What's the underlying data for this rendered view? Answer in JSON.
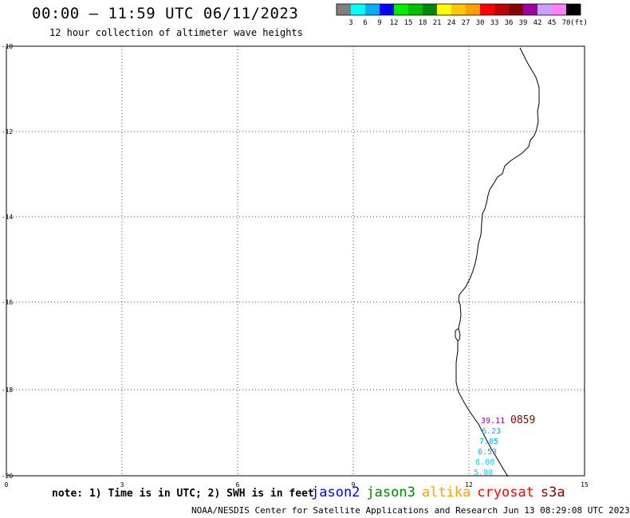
{
  "header": {
    "title": "00:00 – 11:59 UTC 06/11/2023",
    "subtitle": "12 hour collection of altimeter wave heights"
  },
  "colorbar": {
    "colors": [
      "#808080",
      "#00ffff",
      "#00b0f0",
      "#0000ff",
      "#00ee00",
      "#00c000",
      "#008800",
      "#ffff00",
      "#ffc800",
      "#ffa000",
      "#ff0000",
      "#c00000",
      "#880000",
      "#a000a0",
      "#c8a0ff",
      "#ff80ff",
      "#000000"
    ],
    "labels": [
      "3",
      "6",
      "9",
      "12",
      "15",
      "18",
      "21",
      "24",
      "27",
      "30",
      "33",
      "36",
      "39",
      "42",
      "45",
      "70",
      "(ft)"
    ]
  },
  "axes": {
    "lat_labels": [
      "-10",
      "-12",
      "-14",
      "-16",
      "-18",
      "-20"
    ],
    "lon_labels": [
      "0",
      "3",
      "6",
      "9",
      "12",
      "15"
    ]
  },
  "observations": {
    "values": [
      {
        "text": "39.11",
        "color": "#a000a0"
      },
      {
        "text": "6.23",
        "color": "#00b0f0"
      },
      {
        "text": "7.05",
        "color": "#00b0f0"
      },
      {
        "text": "6.53",
        "color": "#00b0f0"
      },
      {
        "text": "6.00",
        "color": "#00d8ff"
      },
      {
        "text": "5.80",
        "color": "#00d8ff"
      }
    ],
    "time_label": "0859",
    "time_color": "#880000"
  },
  "footer": {
    "note": "note: 1) Time is in UTC; 2) SWH is in feet",
    "credit": "NOAA/NESDIS Center for Satellite Applications and Research   Jun 13 08:29:08 UTC 2023",
    "satellites": [
      {
        "name": "jason2",
        "color": "#0000ff"
      },
      {
        "name": "jason3",
        "color": "#008800"
      },
      {
        "name": "altika",
        "color": "#ffa000"
      },
      {
        "name": "cryosat",
        "color": "#ff0000"
      },
      {
        "name": "s3a",
        "color": "#880000"
      }
    ]
  }
}
